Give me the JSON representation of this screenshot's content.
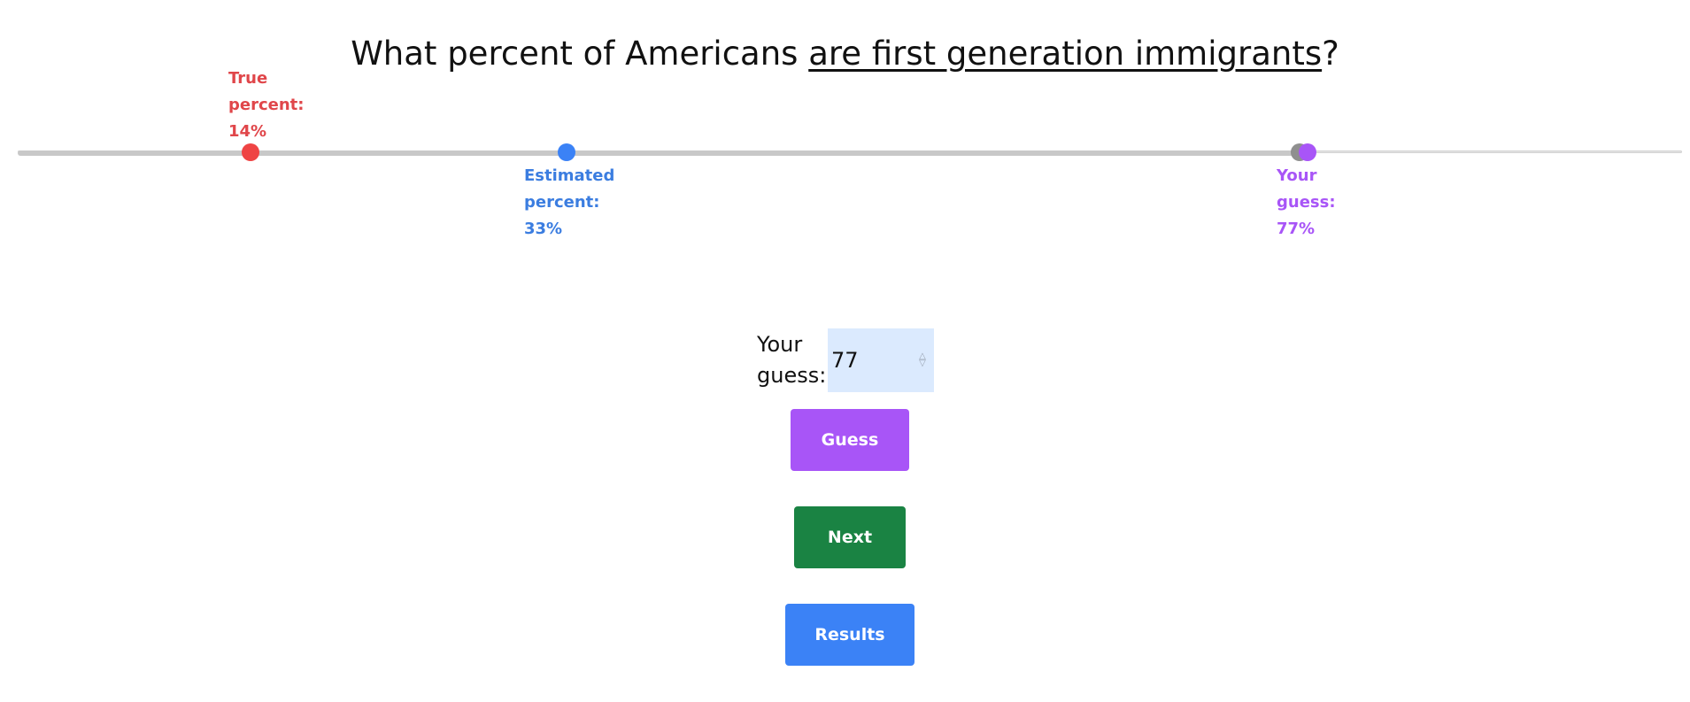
{
  "question": {
    "prefix": "What percent of Americans ",
    "topic": "are first generation immigrants",
    "suffix": "?"
  },
  "slider": {
    "min": 0,
    "max": 100,
    "value": 77,
    "marks": {
      "true": {
        "line1": "True",
        "line2": "percent:",
        "value": "14%",
        "percent": 14,
        "color": "#ef4444"
      },
      "estimated": {
        "line1": "Estimated",
        "line2": "percent:",
        "value": "33%",
        "percent": 33,
        "color": "#3b82f6"
      },
      "guess": {
        "line1": "Your",
        "line2": "guess:",
        "value": "77%",
        "percent": 77,
        "color": "#a855f7"
      }
    }
  },
  "guess_input": {
    "label_line1": "Your",
    "label_line2": "guess:",
    "value": "77"
  },
  "buttons": {
    "guess": "Guess",
    "next": "Next",
    "results": "Results"
  },
  "colors": {
    "guess_button": "#a855f7",
    "next_button": "#1a8343",
    "results_button": "#3b82f6",
    "input_background": "#dbeafe"
  }
}
